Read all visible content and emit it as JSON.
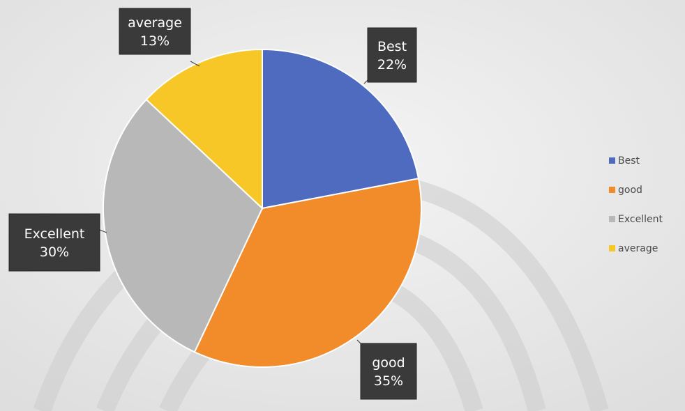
{
  "chart_data": {
    "type": "pie",
    "title": "",
    "slices": [
      {
        "label": "Best",
        "value": 22,
        "color": "#4f6bc0"
      },
      {
        "label": "good",
        "value": 35,
        "color": "#f28b2a"
      },
      {
        "label": "Excellent",
        "value": 30,
        "color": "#b8b8b8"
      },
      {
        "label": "average",
        "value": 13,
        "color": "#f7c727"
      }
    ],
    "value_suffix": "%",
    "legend_position": "right",
    "legend": [
      "Best",
      "good",
      "Excellent",
      "average"
    ],
    "data_labels": [
      "Best 22%",
      "good 35%",
      "Excellent 30%",
      "average 13%"
    ]
  }
}
